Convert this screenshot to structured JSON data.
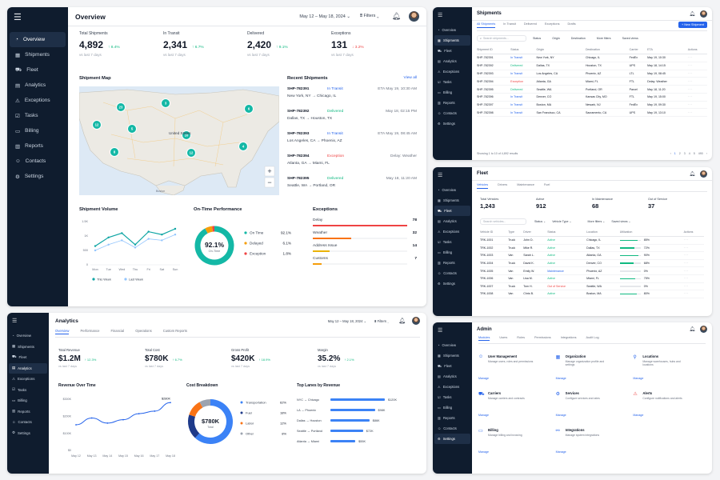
{
  "nav": [
    "Overview",
    "Shipments",
    "Fleet",
    "Analytics",
    "Exceptions",
    "Tasks",
    "Billing",
    "Reports",
    "Contacts",
    "Settings"
  ],
  "common": {
    "filters": "Filters",
    "date_range": "May 12 – May 18, 2024",
    "date_short": "May 12 – May 18, 2024",
    "vs_last": "vs last 7 days"
  },
  "overview": {
    "title": "Overview",
    "kpis": [
      {
        "label": "Total Shipments",
        "value": "4,892",
        "delta": "↑ 8.4%",
        "dir": "up"
      },
      {
        "label": "In Transit",
        "value": "2,341",
        "delta": "↑ 6.7%",
        "dir": "up"
      },
      {
        "label": "Delivered",
        "value": "2,420",
        "delta": "↑ 9.1%",
        "dir": "up"
      },
      {
        "label": "Exceptions",
        "value": "131",
        "delta": "↓ 3.2%",
        "dir": "down"
      }
    ],
    "map": {
      "title": "Shipment Map",
      "country_label": "United States",
      "city_label": "Boston",
      "clusters": [
        "23",
        "12",
        "3",
        "5",
        "6",
        "10",
        "12",
        "8",
        "4"
      ]
    },
    "recent": {
      "title": "Recent Shipments",
      "view_all": "View all",
      "rows": [
        {
          "id": "SHP-782391",
          "status": "In Transit",
          "st": "blue",
          "from": "New York, NY",
          "to": "Chicago, IL",
          "eta": "ETA May 19, 10:30 AM"
        },
        {
          "id": "SHP-782392",
          "status": "Delivered",
          "st": "green",
          "from": "Dallas, TX",
          "to": "Houston, TX",
          "eta": "May 18, 02:15 PM"
        },
        {
          "id": "SHP-782393",
          "status": "In Transit",
          "st": "blue",
          "from": "Los Angeles, CA",
          "to": "Phoenix, AZ",
          "eta": "ETA May 19, 08:45 AM"
        },
        {
          "id": "SHP-782394",
          "status": "Exception",
          "st": "red",
          "from": "Atlanta, GA",
          "to": "Miami, FL",
          "eta": "Delay: Weather"
        },
        {
          "id": "SHP-782395",
          "status": "Delivered",
          "st": "green",
          "from": "Seattle, WA",
          "to": "Portland, OR",
          "eta": "May 18, 11:20 AM"
        }
      ]
    },
    "volume": {
      "title": "Shipment Volume",
      "yticks": [
        "1.5K",
        "1K",
        "500",
        "0"
      ],
      "days": [
        "Mon",
        "Tue",
        "Wed",
        "Thu",
        "Fri",
        "Sat",
        "Sun"
      ],
      "legend": [
        "This Week",
        "Last Week"
      ]
    },
    "otp": {
      "title": "On-Time Performance",
      "value": "92.1%",
      "sub": "On-Time",
      "items": [
        {
          "label": "On Time",
          "value": "92.1%",
          "color": "#14b8a6"
        },
        {
          "label": "Delayed",
          "value": "6.1%",
          "color": "#f59e0b"
        },
        {
          "label": "Exception",
          "value": "1.8%",
          "color": "#ef4444"
        }
      ]
    },
    "exceptions": {
      "title": "Exceptions",
      "items": [
        {
          "label": "Delay",
          "value": "78",
          "color": "#ef4444"
        },
        {
          "label": "Weather",
          "value": "32",
          "color": "#f97316"
        },
        {
          "label": "Address Issue",
          "value": "14",
          "color": "#eab308"
        },
        {
          "label": "Customs",
          "value": "7",
          "color": "#f59e0b"
        }
      ]
    }
  },
  "shipments": {
    "title": "Shipments",
    "new_button": "+ New Shipment",
    "tabs": [
      "All Shipments",
      "In Transit",
      "Delivered",
      "Exceptions",
      "Drafts"
    ],
    "search_placeholder": "Search shipments...",
    "filters": [
      "Status",
      "Origin",
      "Destination",
      "More filters",
      "Saved views"
    ],
    "columns": [
      "Shipment ID",
      "Status",
      "Origin",
      "Destination",
      "Carrier",
      "ETA",
      "Actions"
    ],
    "rows": [
      [
        "SHP-782391",
        "In Transit",
        "New York, NY",
        "Chicago, IL",
        "FedEx",
        "May 19, 10:30"
      ],
      [
        "SHP-782392",
        "Delivered",
        "Dallas, TX",
        "Houston, TX",
        "UPS",
        "May 18, 14:15"
      ],
      [
        "SHP-782393",
        "In Transit",
        "Los Angeles, CA",
        "Phoenix, AZ",
        "LTL",
        "May 19, 08:45"
      ],
      [
        "SHP-782394",
        "Exception",
        "Atlanta, GA",
        "Miami, FL",
        "FTL",
        "Delay: Weather"
      ],
      [
        "SHP-782395",
        "Delivered",
        "Seattle, WA",
        "Portland, OR",
        "Parcel",
        "May 18, 11:20"
      ],
      [
        "SHP-782396",
        "In Transit",
        "Denver, CO",
        "Kansas City, MO",
        "FTL",
        "May 19, 15:00"
      ],
      [
        "SHP-782397",
        "In Transit",
        "Boston, MA",
        "Newark, NJ",
        "FedEx",
        "May 19, 09:30"
      ],
      [
        "SHP-782398",
        "In Transit",
        "San Francisco, CA",
        "Sacramento, CA",
        "UPS",
        "May 19, 13:10"
      ]
    ],
    "footer": "Showing 1 to 10 of 4,892 results",
    "pages": [
      "‹",
      "1",
      "2",
      "3",
      "4",
      "5",
      "490",
      "›"
    ]
  },
  "fleet": {
    "title": "Fleet",
    "tabs": [
      "Vehicles",
      "Drivers",
      "Maintenance",
      "Fuel"
    ],
    "kpis": [
      {
        "label": "Total Vehicles",
        "value": "1,243"
      },
      {
        "label": "Active",
        "value": "912"
      },
      {
        "label": "In Maintenance",
        "value": "68"
      },
      {
        "label": "Out of Service",
        "value": "37"
      }
    ],
    "search_placeholder": "Search vehicles...",
    "filters": [
      "Status",
      "Vehicle Type",
      "More filters",
      "Saved views"
    ],
    "columns": [
      "Vehicle ID",
      "Type",
      "Driver",
      "Status",
      "Location",
      "Utilization",
      "Actions"
    ],
    "rows": [
      {
        "id": "TRK-1001",
        "type": "Truck",
        "driver": "John D.",
        "status": "Active",
        "st": "green",
        "loc": "Chicago, IL",
        "util": "85%",
        "u": 0.85
      },
      {
        "id": "TRK-1002",
        "type": "Truck",
        "driver": "Mike R.",
        "status": "Active",
        "st": "green",
        "loc": "Dallas, TX",
        "util": "72%",
        "u": 0.72
      },
      {
        "id": "TRK-1003",
        "type": "Van",
        "driver": "Sarah L.",
        "status": "Active",
        "st": "green",
        "loc": "Atlanta, GA",
        "util": "90%",
        "u": 0.9
      },
      {
        "id": "TRK-1004",
        "type": "Truck",
        "driver": "David K.",
        "status": "Active",
        "st": "green",
        "loc": "Denver, CO",
        "util": "68%",
        "u": 0.68
      },
      {
        "id": "TRK-1005",
        "type": "Van",
        "driver": "Emily W.",
        "status": "Maintenance",
        "st": "blue",
        "loc": "Phoenix, AZ",
        "util": "0%",
        "u": 0
      },
      {
        "id": "TRK-1006",
        "type": "Van",
        "driver": "Lisa M.",
        "status": "Active",
        "st": "green",
        "loc": "Miami, FL",
        "util": "75%",
        "u": 0.75
      },
      {
        "id": "TRK-1007",
        "type": "Truck",
        "driver": "Tom H.",
        "status": "Out of Service",
        "st": "red",
        "loc": "Seattle, WA",
        "util": "0%",
        "u": 0
      },
      {
        "id": "TRK-1008",
        "type": "Van",
        "driver": "Chris B.",
        "status": "Active",
        "st": "green",
        "loc": "Boston, MA",
        "util": "80%",
        "u": 0.8
      }
    ]
  },
  "analytics": {
    "title": "Analytics",
    "tabs": [
      "Overview",
      "Performance",
      "Financial",
      "Operations",
      "Custom Reports"
    ],
    "kpis": [
      {
        "label": "Total Revenue",
        "value": "$1.2M",
        "delta": "↑ 12.3%",
        "dir": "up"
      },
      {
        "label": "Total Cost",
        "value": "$780K",
        "delta": "↑ 6.7%",
        "dir": "up"
      },
      {
        "label": "Gross Profit",
        "value": "$420K",
        "delta": "↑ 18.9%",
        "dir": "up"
      },
      {
        "label": "Margin",
        "value": "35.2%",
        "delta": "↑ 2.1%",
        "dir": "up"
      }
    ],
    "rev": {
      "title": "Revenue Over Time",
      "yticks": [
        "$300K",
        "$200K",
        "$100K",
        "$0"
      ],
      "dates": [
        "May 12",
        "May 13",
        "May 14",
        "May 15",
        "May 16",
        "May 17",
        "May 18"
      ],
      "callout": "$280K"
    },
    "cost": {
      "title": "Cost Breakdown",
      "center_value": "$780K",
      "center_sub": "Total",
      "items": [
        {
          "label": "Transportation",
          "value": "62%",
          "color": "#3b82f6"
        },
        {
          "label": "Fuel",
          "value": "18%",
          "color": "#1e3a8a"
        },
        {
          "label": "Labor",
          "value": "12%",
          "color": "#f97316"
        },
        {
          "label": "Other",
          "value": "8%",
          "color": "#9ca3af"
        }
      ]
    },
    "lanes": {
      "title": "Top Lanes by Revenue",
      "items": [
        {
          "label": "NYC → Chicago",
          "value": "$120K",
          "v": 120
        },
        {
          "label": "LA → Phoenix",
          "value": "$98K",
          "v": 98
        },
        {
          "label": "Dallas → Houston",
          "value": "$86K",
          "v": 86
        },
        {
          "label": "Seattle → Portland",
          "value": "$72K",
          "v": 72
        },
        {
          "label": "Atlanta → Miami",
          "value": "$55K",
          "v": 55
        }
      ]
    }
  },
  "admin": {
    "title": "Admin",
    "tabs": [
      "Modules",
      "Users",
      "Roles",
      "Permissions",
      "Integrations",
      "Audit Log"
    ],
    "manage": "Manage",
    "modules": [
      {
        "title": "User Management",
        "desc": "Manage users, roles and permissions",
        "icon": "users-icon"
      },
      {
        "title": "Organization",
        "desc": "Manage organization profile and settings",
        "icon": "building-icon"
      },
      {
        "title": "Locations",
        "desc": "Manage warehouses, hubs and locations",
        "icon": "pin-icon"
      },
      {
        "title": "Carriers",
        "desc": "Manage carriers and contracts",
        "icon": "truck-icon"
      },
      {
        "title": "Services",
        "desc": "Configure services and rates",
        "icon": "services-icon"
      },
      {
        "title": "Alerts",
        "desc": "Configure notifications and alerts",
        "icon": "alert-icon"
      },
      {
        "title": "Billing",
        "desc": "Manage billing and invoicing",
        "icon": "billing-icon"
      },
      {
        "title": "Integrations",
        "desc": "Manage system integrations",
        "icon": "integrations-icon"
      }
    ]
  },
  "chart_data": [
    {
      "type": "line",
      "title": "Shipment Volume",
      "categories": [
        "Mon",
        "Tue",
        "Wed",
        "Thu",
        "Fri",
        "Sat",
        "Sun"
      ],
      "ylim": [
        0,
        1500
      ],
      "series": [
        {
          "name": "This Week",
          "values": [
            650,
            950,
            1100,
            700,
            1150,
            1050,
            1250
          ]
        },
        {
          "name": "Last Week",
          "values": [
            500,
            700,
            850,
            600,
            900,
            850,
            1050
          ]
        }
      ]
    },
    {
      "type": "pie",
      "title": "On-Time Performance",
      "categories": [
        "On Time",
        "Delayed",
        "Exception"
      ],
      "values": [
        92.1,
        6.1,
        1.8
      ]
    },
    {
      "type": "bar",
      "title": "Exceptions",
      "categories": [
        "Delay",
        "Weather",
        "Address Issue",
        "Customs"
      ],
      "values": [
        78,
        32,
        14,
        7
      ]
    },
    {
      "type": "line",
      "title": "Revenue Over Time",
      "categories": [
        "May 12",
        "May 13",
        "May 14",
        "May 15",
        "May 16",
        "May 17",
        "May 18"
      ],
      "ylim": [
        0,
        300000
      ],
      "series": [
        {
          "values": [
            150000,
            190000,
            160000,
            180000,
            215000,
            230000,
            280000
          ]
        }
      ]
    },
    {
      "type": "pie",
      "title": "Cost Breakdown",
      "categories": [
        "Transportation",
        "Fuel",
        "Labor",
        "Other"
      ],
      "values": [
        62,
        18,
        12,
        8
      ]
    },
    {
      "type": "bar",
      "title": "Top Lanes by Revenue",
      "categories": [
        "NYC → Chicago",
        "LA → Phoenix",
        "Dallas → Houston",
        "Seattle → Portland",
        "Atlanta → Miami"
      ],
      "values": [
        120,
        98,
        86,
        72,
        55
      ]
    }
  ]
}
